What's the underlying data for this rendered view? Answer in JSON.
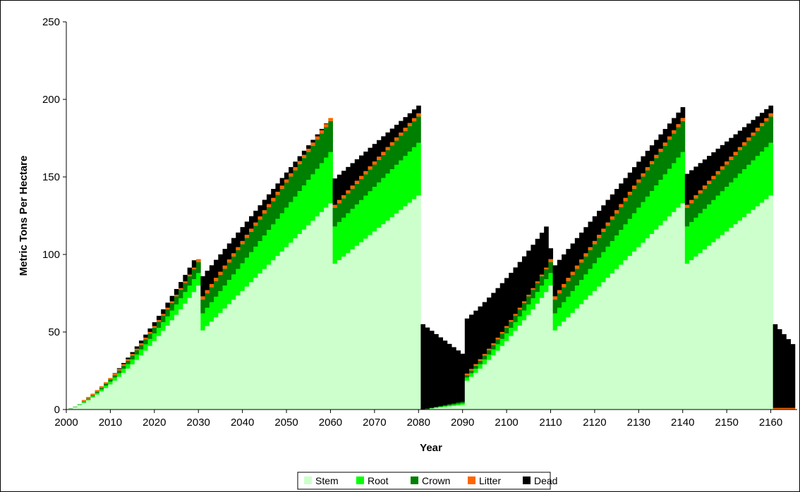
{
  "chart_data": {
    "type": "bar",
    "stacked": true,
    "xlabel": "Year",
    "ylabel": "Metric Tons Per Hectare",
    "xlim": [
      2000,
      2166
    ],
    "ylim": [
      0,
      250
    ],
    "yticks": [
      "0",
      "50",
      "100",
      "150",
      "200",
      "250"
    ],
    "xticks": [
      "2000",
      "2010",
      "2020",
      "2030",
      "2040",
      "2050",
      "2060",
      "2070",
      "2080",
      "2090",
      "2100",
      "2110",
      "2120",
      "2130",
      "2140",
      "2150",
      "2160"
    ],
    "grid": false,
    "legend_position": "bottom",
    "series": [
      {
        "name": "Stem",
        "color": "#ccffcc"
      },
      {
        "name": "Root",
        "color": "#00ff00"
      },
      {
        "name": "Crown",
        "color": "#008000"
      },
      {
        "name": "Litter",
        "color": "#ff6600"
      },
      {
        "name": "Dead",
        "color": "#000000"
      }
    ],
    "key_values": [
      {
        "year": 2030,
        "stem": 80,
        "root": 8,
        "crown": 7,
        "litter": 2,
        "dead": 0
      },
      {
        "year": 2031,
        "stem": 51,
        "root": 11,
        "crown": 9,
        "litter": 2,
        "dead": 13
      },
      {
        "year": 2060,
        "stem": 133,
        "root": 33,
        "crown": 20,
        "litter": 2,
        "dead": 0
      },
      {
        "year": 2061,
        "stem": 94,
        "root": 24,
        "crown": 12,
        "litter": 2,
        "dead": 17
      },
      {
        "year": 2080,
        "stem": 138,
        "root": 34,
        "crown": 17,
        "litter": 2,
        "dead": 5
      },
      {
        "year": 2081,
        "stem": 0,
        "root": 0,
        "crown": 0,
        "litter": 0,
        "dead": 55
      },
      {
        "year": 2090,
        "stem": 3,
        "root": 1,
        "crown": 1,
        "litter": 0,
        "dead": 31
      },
      {
        "year": 2110,
        "stem": 80,
        "root": 8,
        "crown": 7,
        "litter": 2,
        "dead": 7
      },
      {
        "year": 2111,
        "stem": 51,
        "root": 11,
        "crown": 9,
        "litter": 2,
        "dead": 20
      },
      {
        "year": 2140,
        "stem": 133,
        "root": 33,
        "crown": 20,
        "litter": 2,
        "dead": 7
      },
      {
        "year": 2141,
        "stem": 94,
        "root": 24,
        "crown": 12,
        "litter": 2,
        "dead": 20
      },
      {
        "year": 2160,
        "stem": 138,
        "root": 34,
        "crown": 17,
        "litter": 2,
        "dead": 5
      },
      {
        "year": 2161,
        "stem": 0,
        "root": 0,
        "crown": 0,
        "litter": 1,
        "dead": 54
      }
    ]
  }
}
